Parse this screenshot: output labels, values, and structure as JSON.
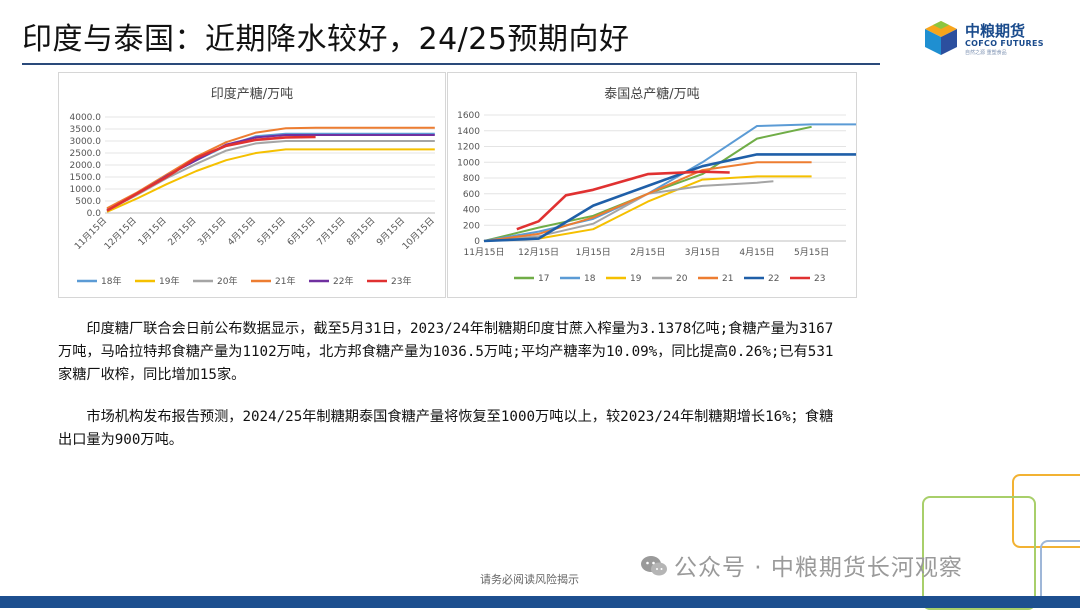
{
  "page": {
    "title": "印度与泰国：近期降水较好，24/25预期向好",
    "logo": {
      "name": "中粮期货",
      "english": "COFCO FUTURES",
      "tagline": "自然之源 重塑食品"
    },
    "footer_note": "请务必阅读风险揭示",
    "watermark": "公众号 · 中粮期货长河观察",
    "colors": {
      "title_rule": "#2a4a7a",
      "bottom_bar": "#1d4f8f",
      "logo_blue": "#1a4b8c"
    }
  },
  "paragraphs": [
    "印度糖厂联合会日前公布数据显示，截至5月31日，2023/24年制糖期印度甘蔗入榨量为3.1378亿吨;食糖产量为3167万吨，马哈拉特邦食糖产量为1102万吨，北方邦食糖产量为1036.5万吨;平均产糖率为10.09%，同比提高0.26%;已有531家糖厂收榨，同比增加15家。",
    "市场机构发布报告预测，2024/25年制糖期泰国食糖产量将恢复至1000万吨以上，较2023/24年制糖期增长16%；食糖出口量为900万吨。"
  ],
  "chart_data": [
    {
      "type": "line",
      "title": "印度产糖/万吨",
      "categories": [
        "11月15日",
        "12月15日",
        "1月15日",
        "2月15日",
        "3月15日",
        "4月15日",
        "5月15日",
        "6月15日",
        "7月15日",
        "8月15日",
        "9月15日",
        "10月15日"
      ],
      "yticks": [
        "0.0",
        "500.0",
        "1000.0",
        "1500.0",
        "2000.0",
        "2500.0",
        "3000.0",
        "3500.0",
        "4000.0"
      ],
      "ylim": [
        0,
        4000
      ],
      "legend_position": "bottom",
      "series": [
        {
          "name": "18年",
          "color": "#5b9bd5",
          "values": [
            150,
            800,
            1550,
            2200,
            2800,
            3200,
            3300,
            3300,
            3300,
            3300,
            3300,
            3300
          ]
        },
        {
          "name": "19年",
          "color": "#f5c000",
          "values": [
            50,
            600,
            1200,
            1750,
            2200,
            2500,
            2650,
            2650,
            2650,
            2650,
            2650,
            2650
          ]
        },
        {
          "name": "20年",
          "color": "#a5a5a5",
          "values": [
            100,
            750,
            1450,
            2050,
            2600,
            2900,
            3000,
            3000,
            3000,
            3000,
            3000,
            3000
          ]
        },
        {
          "name": "21年",
          "color": "#ed7d31",
          "values": [
            200,
            850,
            1600,
            2350,
            2950,
            3350,
            3530,
            3550,
            3550,
            3550,
            3550,
            3550
          ]
        },
        {
          "name": "22年",
          "color": "#7030a0",
          "values": [
            100,
            800,
            1550,
            2200,
            2850,
            3150,
            3250,
            3250,
            3250,
            3250,
            3250,
            3250
          ]
        },
        {
          "name": "23年",
          "color": "#e03131",
          "values": [
            100,
            800,
            1500,
            2300,
            2800,
            3050,
            3150,
            3167,
            null,
            null,
            null,
            null
          ]
        }
      ]
    },
    {
      "type": "line",
      "title": "泰国总产糖/万吨",
      "categories": [
        "11月15日",
        "12月15日",
        "1月15日",
        "2月15日",
        "3月15日",
        "4月15日",
        "5月15日"
      ],
      "yticks": [
        "0",
        "200",
        "400",
        "600",
        "800",
        "1000",
        "1200",
        "1400",
        "1600"
      ],
      "ylim": [
        0,
        1600
      ],
      "legend_position": "bottom",
      "series": [
        {
          "name": "17",
          "color": "#70ad47",
          "points": [
            [
              0,
              0
            ],
            [
              1,
              170
            ],
            [
              2,
              320
            ],
            [
              3,
              600
            ],
            [
              4,
              850
            ],
            [
              5,
              1300
            ],
            [
              6,
              1450
            ]
          ]
        },
        {
          "name": "18",
          "color": "#5b9bd5",
          "points": [
            [
              0,
              0
            ],
            [
              1,
              120
            ],
            [
              2,
              280
            ],
            [
              3,
              600
            ],
            [
              4,
              1000
            ],
            [
              5,
              1460
            ],
            [
              6,
              1480
            ],
            [
              7,
              1480
            ]
          ]
        },
        {
          "name": "19",
          "color": "#f5c000",
          "points": [
            [
              0,
              0
            ],
            [
              1,
              30
            ],
            [
              2,
              150
            ],
            [
              3,
              500
            ],
            [
              4,
              780
            ],
            [
              5,
              820
            ],
            [
              6,
              820
            ]
          ]
        },
        {
          "name": "20",
          "color": "#a5a5a5",
          "points": [
            [
              0,
              0
            ],
            [
              1,
              60
            ],
            [
              2,
              220
            ],
            [
              3,
              600
            ],
            [
              4,
              700
            ],
            [
              5,
              740
            ],
            [
              5.3,
              760
            ]
          ]
        },
        {
          "name": "21",
          "color": "#ed7d31",
          "points": [
            [
              0,
              0
            ],
            [
              1,
              90
            ],
            [
              2,
              300
            ],
            [
              3,
              600
            ],
            [
              4,
              900
            ],
            [
              5,
              1000
            ],
            [
              6,
              1000
            ]
          ]
        },
        {
          "name": "22",
          "color": "#1f5fa8",
          "points": [
            [
              0,
              0
            ],
            [
              1,
              30
            ],
            [
              2,
              450
            ],
            [
              3,
              700
            ],
            [
              4,
              950
            ],
            [
              5,
              1100
            ],
            [
              6,
              1100
            ],
            [
              7,
              1100
            ]
          ]
        },
        {
          "name": "23",
          "color": "#e03131",
          "points": [
            [
              0.6,
              150
            ],
            [
              1,
              250
            ],
            [
              1.5,
              580
            ],
            [
              2,
              650
            ],
            [
              3,
              850
            ],
            [
              4,
              880
            ],
            [
              4.5,
              870
            ]
          ]
        }
      ]
    }
  ]
}
